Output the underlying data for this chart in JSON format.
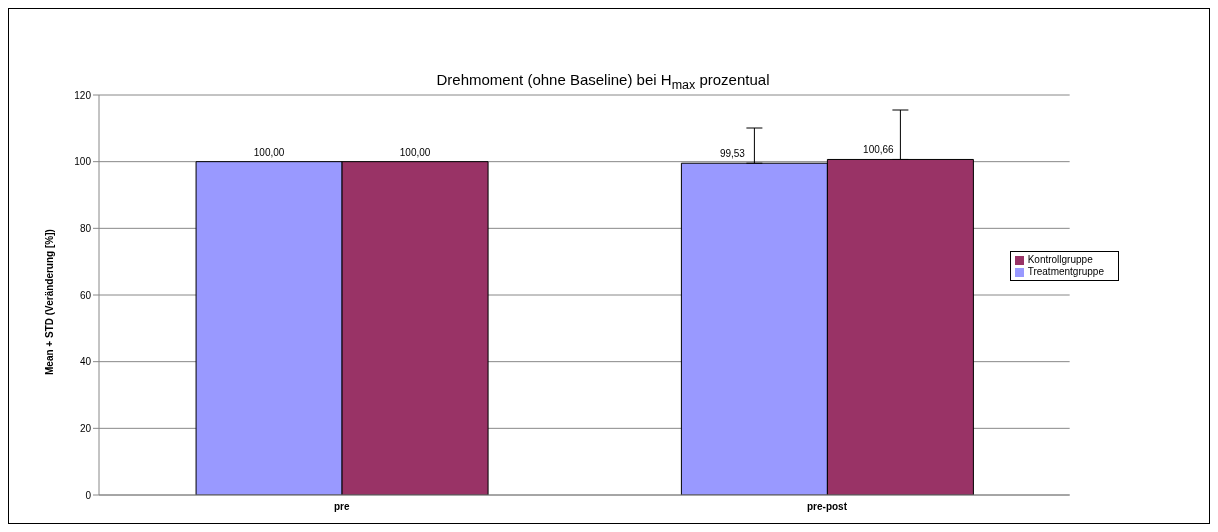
{
  "chart_data": {
    "type": "bar",
    "title": "Drehmoment (ohne Baseline) bei H$_{max}$ prozentual",
    "ylabel": "Mean + STD (Veränderung [%])",
    "categories": [
      "pre",
      "pre-post"
    ],
    "series": [
      {
        "name": "Treatmentgruppe",
        "color": "#9999ff",
        "values": [
          100.0,
          99.53
        ],
        "value_labels": [
          "100,00",
          "99,53"
        ],
        "errors": [
          null,
          [
            99.53,
            110.1
          ]
        ]
      },
      {
        "name": "Kontrollgruppe",
        "color": "#993366",
        "values": [
          100.0,
          100.66
        ],
        "value_labels": [
          "100,00",
          "100,66"
        ],
        "errors": [
          null,
          [
            100.66,
            115.5
          ]
        ]
      }
    ],
    "ylim": [
      0,
      120
    ],
    "yticks": [
      0,
      20,
      40,
      60,
      80,
      100,
      120
    ],
    "grid": "y",
    "legend": "right"
  }
}
